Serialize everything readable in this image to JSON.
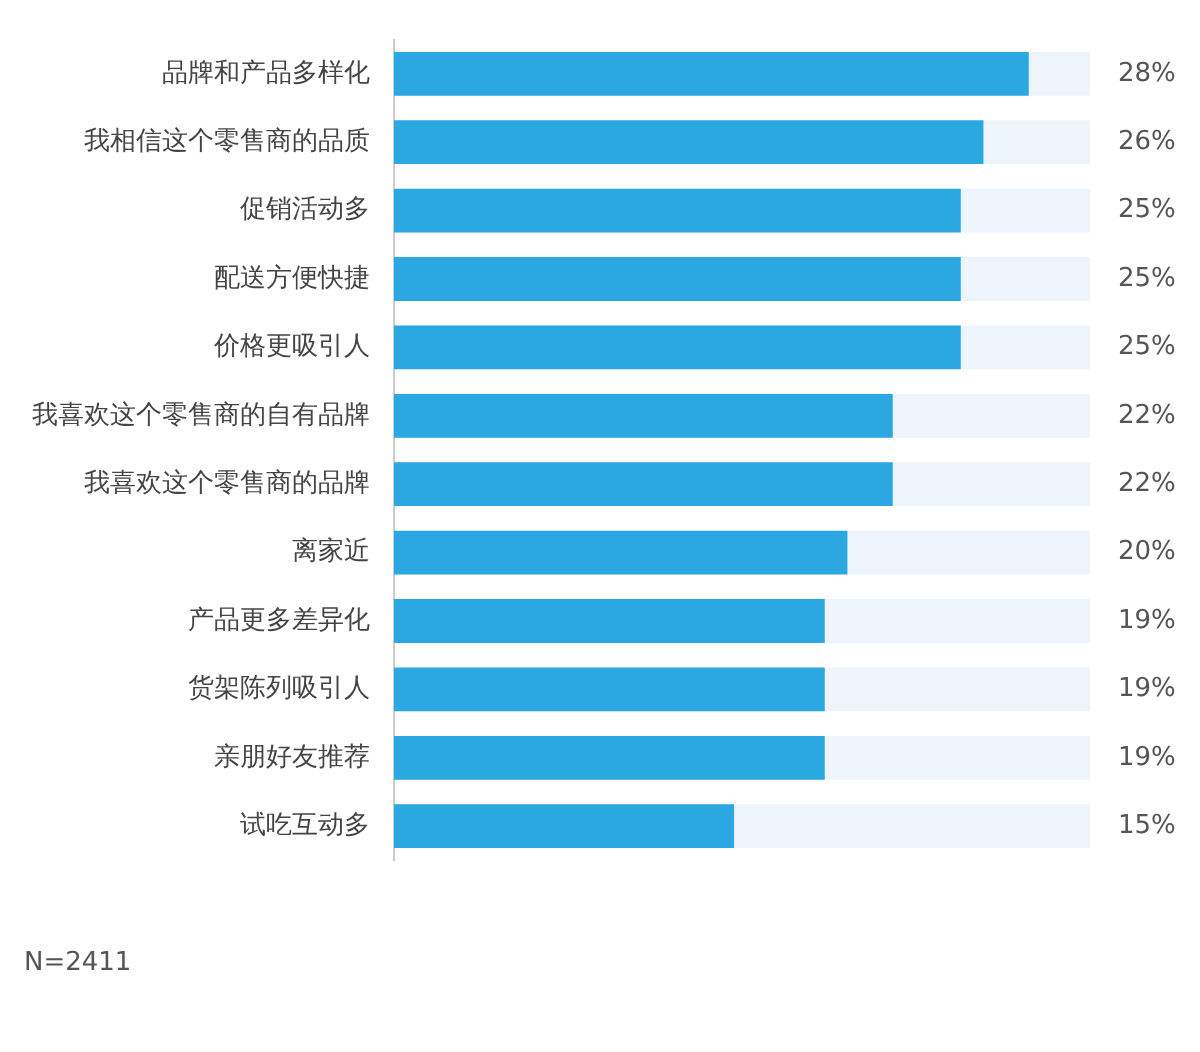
{
  "chart_data": {
    "type": "bar",
    "orientation": "horizontal",
    "categories": [
      "品牌和产品多样化",
      "我相信这个零售商的品质",
      "促销活动多",
      "配送方便快捷",
      "价格更吸引人",
      "我喜欢这个零售商的自有品牌",
      "我喜欢这个零售商的品牌",
      "离家近",
      "产品更多差异化",
      "货架陈列吸引人",
      "亲朋好友推荐",
      "试吃互动多"
    ],
    "values": [
      28,
      26,
      25,
      25,
      25,
      22,
      22,
      20,
      19,
      19,
      19,
      15
    ],
    "value_labels": [
      "28%",
      "26%",
      "25%",
      "25%",
      "25%",
      "22%",
      "22%",
      "20%",
      "19%",
      "19%",
      "19%",
      "15%"
    ],
    "color": "#2ba7e1",
    "xlim": [
      0,
      30.7
    ],
    "tick_labels": "y",
    "legend": false,
    "annotations": [
      "N=2411"
    ]
  }
}
